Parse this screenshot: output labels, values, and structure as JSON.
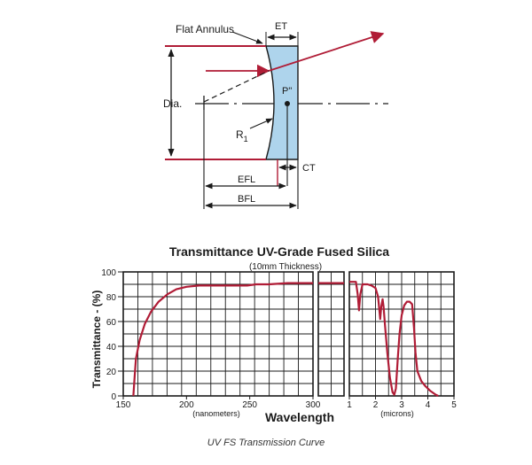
{
  "diagram": {
    "labels": {
      "flat_annulus": "Flat Annulus",
      "et": "ET",
      "dia": "Dia.",
      "p_double_prime": "P\"",
      "r1": "R",
      "r1_sub": "1",
      "ct": "CT",
      "efl": "EFL",
      "bfl": "BFL"
    },
    "colors": {
      "ray": "#b01c36",
      "lens_fill": "#aed4ec",
      "ink": "#1a1a1a"
    }
  },
  "chart_data": {
    "type": "line",
    "title": "Transmittance UV-Grade Fused Silica",
    "subtitle": "(10mm Thickness)",
    "ylabel": "Transmittance - (%)",
    "xlabel": "Wavelength",
    "ylim": [
      0,
      100
    ],
    "yticks": [
      "0",
      "20",
      "40",
      "60",
      "80",
      "100"
    ],
    "panels": [
      {
        "unit_label": "(nanometers)",
        "xlim": [
          150,
          300
        ],
        "xticks": [
          "150",
          "200",
          "250",
          "300"
        ],
        "points": [
          [
            158,
            0
          ],
          [
            159,
            15
          ],
          [
            160,
            30
          ],
          [
            163,
            45
          ],
          [
            167,
            58
          ],
          [
            172,
            68
          ],
          [
            178,
            76
          ],
          [
            185,
            82
          ],
          [
            192,
            86
          ],
          [
            200,
            88
          ],
          [
            210,
            89
          ],
          [
            225,
            89
          ],
          [
            240,
            89
          ],
          [
            248,
            89
          ],
          [
            255,
            90
          ],
          [
            265,
            90
          ],
          [
            280,
            91
          ],
          [
            300,
            91
          ]
        ]
      },
      {
        "unit_label": "",
        "xlim": [
          0,
          1
        ],
        "xticks": [],
        "points": [
          [
            0,
            91
          ],
          [
            1,
            91
          ]
        ]
      },
      {
        "unit_label": "(microns)",
        "xlim": [
          1,
          5
        ],
        "xticks": [
          "1",
          "2",
          "3",
          "4",
          "5"
        ],
        "points": [
          [
            1,
            92
          ],
          [
            1.25,
            92
          ],
          [
            1.32,
            82
          ],
          [
            1.37,
            69
          ],
          [
            1.42,
            82
          ],
          [
            1.5,
            90
          ],
          [
            1.7,
            90
          ],
          [
            1.85,
            89
          ],
          [
            2.0,
            87
          ],
          [
            2.1,
            80
          ],
          [
            2.18,
            62
          ],
          [
            2.22,
            72
          ],
          [
            2.27,
            78
          ],
          [
            2.31,
            72
          ],
          [
            2.36,
            58
          ],
          [
            2.45,
            35
          ],
          [
            2.55,
            15
          ],
          [
            2.65,
            3
          ],
          [
            2.72,
            1
          ],
          [
            2.78,
            6
          ],
          [
            2.85,
            30
          ],
          [
            2.92,
            50
          ],
          [
            3.0,
            65
          ],
          [
            3.1,
            73
          ],
          [
            3.2,
            76
          ],
          [
            3.3,
            76
          ],
          [
            3.4,
            74
          ],
          [
            3.47,
            55
          ],
          [
            3.53,
            35
          ],
          [
            3.6,
            20
          ],
          [
            3.75,
            12
          ],
          [
            3.9,
            8
          ],
          [
            4.1,
            4
          ],
          [
            4.3,
            1
          ],
          [
            4.4,
            0
          ]
        ]
      }
    ],
    "series_color": "#b01c36",
    "grid": true
  },
  "caption": "UV FS Transmission Curve"
}
